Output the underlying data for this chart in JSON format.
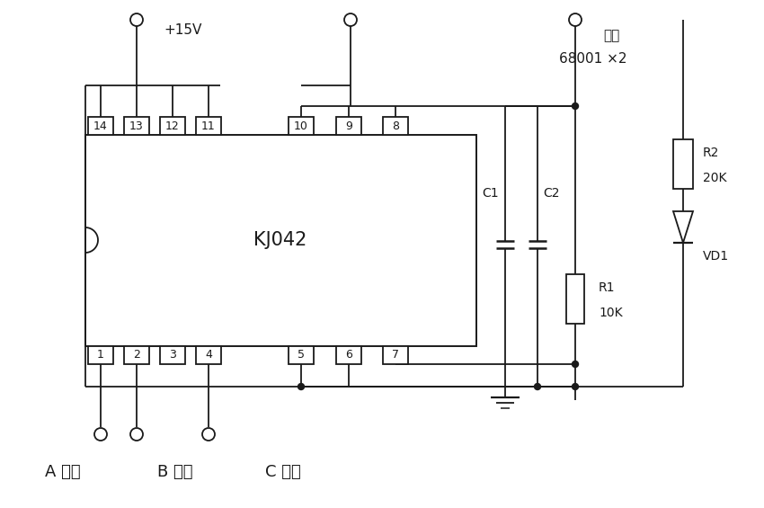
{
  "background_color": "#ffffff",
  "line_color": "#1a1a1a",
  "ic_label": "KJ042",
  "top_pins": [
    "14",
    "13",
    "12",
    "11",
    "10",
    "9",
    "8"
  ],
  "bottom_pins": [
    "1",
    "2",
    "3",
    "4",
    "5",
    "6",
    "7"
  ],
  "label_15v": "+15V",
  "label_output": "输出",
  "label_6800": "68001 ×2",
  "label_C1": "C1",
  "label_C2": "C2",
  "label_R1": "R1",
  "label_R1_val": "10K",
  "label_R2": "R2",
  "label_R2_val": "20K",
  "label_VD1": "VD1",
  "label_A": "A 相入",
  "label_B": "B 相入",
  "label_C": "C 相入"
}
